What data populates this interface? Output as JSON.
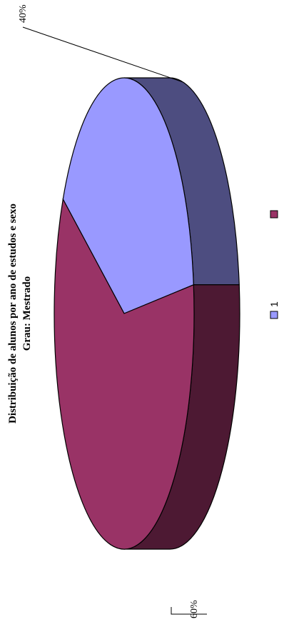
{
  "chart_data": {
    "type": "pie",
    "style": "3d",
    "title": "Distribuição de alunos por ano de estudos e sexo",
    "subtitle": "Grau: Mestrado",
    "series": [
      {
        "categories": [
          "1",
          ""
        ],
        "values": [
          40,
          60
        ],
        "labels": [
          "40%",
          "60%"
        ],
        "colors": [
          "#9999FF",
          "#993366"
        ],
        "side_colors": [
          "#4d4d80",
          "#4d1933"
        ]
      }
    ],
    "legend": {
      "position": "bottom",
      "entries": [
        {
          "label": "1",
          "color": "#9999FF"
        },
        {
          "label": "",
          "color": "#993366"
        }
      ]
    }
  }
}
